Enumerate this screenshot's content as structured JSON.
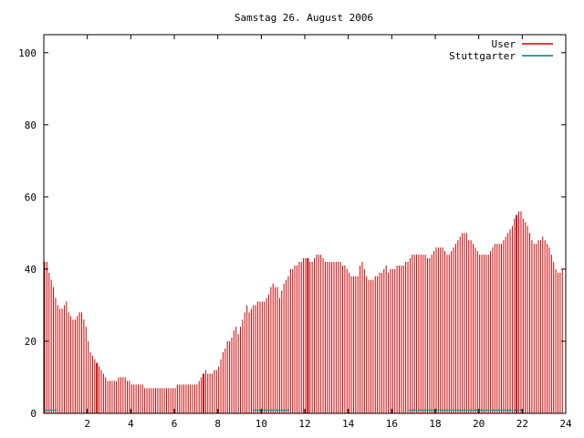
{
  "chart_data": {
    "type": "bar",
    "title": "Samstag 26. August 2006",
    "xlabel": "",
    "ylabel": "",
    "xlim": [
      0,
      24
    ],
    "ylim": [
      0,
      105
    ],
    "x_ticks": [
      2,
      4,
      6,
      8,
      10,
      12,
      14,
      16,
      18,
      20,
      22,
      24
    ],
    "y_ticks": [
      0,
      20,
      40,
      60,
      80,
      100
    ],
    "grid": false,
    "legend_position": "top-right",
    "x_step": 0.1,
    "series": [
      {
        "name": "User",
        "color": "#cc0000",
        "values": [
          42,
          42,
          39,
          37,
          35,
          32,
          30,
          29,
          29,
          30,
          31,
          28,
          27,
          26,
          26,
          27,
          28,
          28,
          26,
          24,
          20,
          17,
          16,
          15,
          14,
          13,
          12,
          11,
          10,
          9,
          9,
          9,
          9,
          9,
          10,
          10,
          10,
          10,
          9,
          9,
          8,
          8,
          8,
          8,
          8,
          8,
          7,
          7,
          7,
          7,
          7,
          7,
          7,
          7,
          7,
          7,
          7,
          7,
          7,
          7,
          7,
          8,
          8,
          8,
          8,
          8,
          8,
          8,
          8,
          8,
          8,
          9,
          10,
          11,
          12,
          11,
          11,
          11,
          12,
          12,
          13,
          15,
          17,
          18,
          20,
          20,
          21,
          23,
          24,
          22,
          24,
          26,
          28,
          30,
          28,
          29,
          30,
          30,
          31,
          31,
          31,
          31,
          32,
          33,
          35,
          36,
          35,
          35,
          32,
          34,
          36,
          37,
          38,
          40,
          40,
          41,
          41,
          42,
          42,
          43,
          43,
          43,
          42,
          42,
          43,
          44,
          44,
          44,
          43,
          42,
          42,
          42,
          42,
          42,
          42,
          42,
          42,
          41,
          41,
          40,
          39,
          38,
          38,
          38,
          38,
          41,
          42,
          40,
          38,
          37,
          37,
          37,
          38,
          38,
          39,
          39,
          40,
          41,
          39,
          40,
          40,
          40,
          41,
          41,
          41,
          41,
          42,
          42,
          43,
          44,
          44,
          44,
          44,
          44,
          44,
          44,
          43,
          43,
          44,
          45,
          46,
          46,
          46,
          46,
          45,
          44,
          44,
          45,
          46,
          47,
          48,
          49,
          50,
          50,
          50,
          48,
          48,
          47,
          46,
          45,
          44,
          44,
          44,
          44,
          44,
          45,
          46,
          47,
          47,
          47,
          47,
          48,
          49,
          50,
          51,
          52,
          54,
          55,
          56,
          56,
          54,
          53,
          52,
          50,
          48,
          47,
          47,
          48,
          48,
          49,
          48,
          47,
          46,
          44,
          42,
          40,
          39,
          39,
          40
        ]
      },
      {
        "name": "Stuttgarter",
        "color": "#008080",
        "values": [
          1,
          1,
          1,
          1,
          1,
          1,
          0,
          0,
          0,
          0,
          0,
          0,
          0,
          0,
          0,
          0,
          0,
          0,
          0,
          0,
          0,
          0,
          0,
          0,
          0,
          0,
          0,
          0,
          0,
          0,
          0,
          0,
          0,
          0,
          0,
          0,
          0,
          0,
          0,
          0,
          0,
          0,
          0,
          0,
          0,
          0,
          0,
          0,
          0,
          0,
          0,
          0,
          0,
          0,
          0,
          0,
          0,
          0,
          0,
          0,
          0,
          0,
          0,
          0,
          0,
          0,
          0,
          0,
          0,
          0,
          0,
          0,
          0,
          0,
          0,
          0,
          0,
          0,
          0,
          0,
          0,
          0,
          0,
          0,
          0,
          0,
          0,
          0,
          0,
          0,
          0,
          0,
          0,
          0,
          0,
          0,
          1,
          1,
          1,
          1,
          1,
          1,
          1,
          1,
          1,
          1,
          1,
          1,
          1,
          1,
          1,
          1,
          1,
          0,
          0,
          0,
          0,
          0,
          0,
          0,
          0,
          0,
          0,
          0,
          0,
          0,
          0,
          0,
          0,
          0,
          0,
          0,
          0,
          0,
          0,
          0,
          0,
          0,
          0,
          0,
          0,
          0,
          0,
          0,
          0,
          0,
          0,
          0,
          0,
          0,
          0,
          0,
          0,
          0,
          0,
          0,
          0,
          0,
          0,
          0,
          0,
          0,
          0,
          0,
          0,
          0,
          0,
          0,
          1,
          1,
          1,
          1,
          1,
          1,
          1,
          1,
          1,
          1,
          1,
          1,
          1,
          1,
          1,
          1,
          1,
          1,
          1,
          1,
          1,
          1,
          1,
          1,
          1,
          1,
          1,
          1,
          1,
          1,
          1,
          1,
          1,
          1,
          1,
          1,
          1,
          1,
          1,
          1,
          1,
          1,
          1,
          1,
          1,
          1,
          1,
          1,
          1,
          1,
          1,
          1,
          1,
          0,
          0,
          0,
          0,
          0,
          0,
          0,
          0,
          0,
          0,
          0,
          0,
          0,
          0,
          0,
          0,
          0,
          0,
          0,
          0,
          0,
          0,
          0,
          0,
          0,
          0,
          0,
          0,
          0,
          0,
          0,
          0
        ]
      }
    ],
    "highlight_x": [
      2.4,
      7.3,
      12.1,
      21.7
    ]
  }
}
